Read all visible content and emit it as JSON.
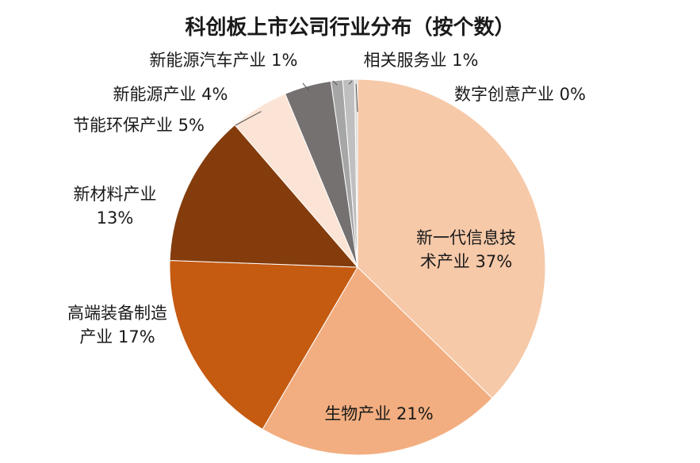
{
  "chart_data": {
    "type": "pie",
    "title": "科创板上市公司行业分布（按个数）",
    "slices": [
      {
        "name": "新一代信息技术产业",
        "value": 37,
        "label_lines": [
          "新一代信息技",
          "术产业 37%"
        ],
        "color": "#F6C9A9"
      },
      {
        "name": "生物产业",
        "value": 21,
        "label_lines": [
          "生物产业 21%"
        ],
        "color": "#F2AE80"
      },
      {
        "name": "高端装备制造产业",
        "value": 17,
        "label_lines": [
          "高端装备制造",
          "产业 17%"
        ],
        "color": "#C55A11"
      },
      {
        "name": "新材料产业",
        "value": 13,
        "label_lines": [
          "新材料产业",
          "13%"
        ],
        "color": "#843C0C"
      },
      {
        "name": "节能环保产业",
        "value": 5,
        "label_lines": [
          "节能环保产业 5%"
        ],
        "color": "#FBE4D5"
      },
      {
        "name": "新能源产业",
        "value": 4,
        "label_lines": [
          "新能源产业 4%"
        ],
        "color": "#767171"
      },
      {
        "name": "新能源汽车产业",
        "value": 1,
        "label_lines": [
          "新能源汽车产业 1%"
        ],
        "color": "#A6A6A6"
      },
      {
        "name": "相关服务业",
        "value": 1,
        "label_lines": [
          "相关服务业 1%"
        ],
        "color": "#BFBFBF"
      },
      {
        "name": "数字创意产业",
        "value": 0,
        "label_lines": [
          "数字创意产业 0%"
        ],
        "color": "#D9D9D9"
      }
    ]
  }
}
